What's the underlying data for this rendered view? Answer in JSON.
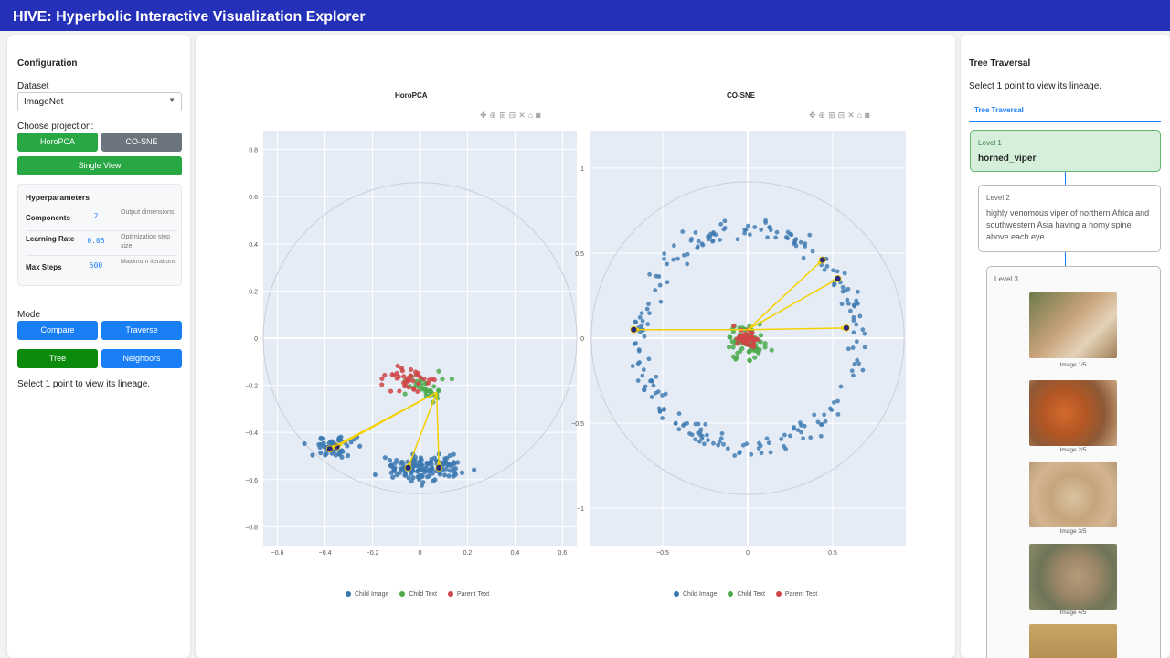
{
  "app": {
    "title": "HIVE: Hyperbolic Interactive Visualization Explorer"
  },
  "config": {
    "heading": "Configuration",
    "dataset_label": "Dataset",
    "dataset_value": "ImageNet",
    "projection_label": "Choose projection:",
    "btn_horopca": "HoroPCA",
    "btn_cosne": "CO-SNE",
    "btn_single": "Single View",
    "hyper": {
      "title": "Hyperparameters",
      "rows": [
        {
          "name": "Components",
          "value": "2",
          "desc": "Output dimensions"
        },
        {
          "name": "Learning Rate",
          "value": "0.05",
          "desc": "Optimization step size"
        },
        {
          "name": "Max Steps",
          "value": "500",
          "desc": "Maximum iterations"
        }
      ]
    },
    "mode_label": "Mode",
    "btn_compare": "Compare",
    "btn_traverse": "Traverse",
    "btn_tree": "Tree",
    "btn_neighbors": "Neighbors",
    "hint": "Select 1 point to view its lineage."
  },
  "toolbar_icons": [
    "pan-icon",
    "zoom-in-icon",
    "zoom-plus-icon",
    "zoom-minus-icon",
    "autoscale-icon",
    "home-icon",
    "camera-icon"
  ],
  "chart_data": [
    {
      "type": "scatter",
      "title": "HoroPCA",
      "xticks": [
        "−0.6",
        "−0.4",
        "−0.2",
        "0",
        "0.2",
        "0.4",
        "0.6"
      ],
      "yticks": [
        "0.8",
        "0.6",
        "0.4",
        "0.2",
        "0",
        "−0.2",
        "−0.4",
        "−0.6",
        "−0.8"
      ],
      "xlim": [
        -0.66,
        0.66
      ],
      "ylim": [
        -0.88,
        0.88
      ],
      "legend": [
        "Child Image",
        "Child Text",
        "Parent Text"
      ],
      "clusters": [
        {
          "series": "Child Image",
          "cx": -0.34,
          "cy": -0.46,
          "sx": 0.05,
          "sy": 0.02,
          "n": 55
        },
        {
          "series": "Child Image",
          "cx": 0.03,
          "cy": -0.55,
          "sx": 0.08,
          "sy": 0.025,
          "n": 140
        },
        {
          "series": "Child Text",
          "cx": 0.03,
          "cy": -0.2,
          "sx": 0.05,
          "sy": 0.025,
          "n": 35
        },
        {
          "series": "Parent Text",
          "cx": -0.05,
          "cy": -0.18,
          "sx": 0.06,
          "sy": 0.03,
          "n": 40
        }
      ],
      "arrows": [
        {
          "x1": 0.07,
          "y1": -0.23,
          "x2": -0.35,
          "y2": -0.46
        },
        {
          "x1": 0.07,
          "y1": -0.23,
          "x2": -0.38,
          "y2": -0.47
        },
        {
          "x1": 0.07,
          "y1": -0.23,
          "x2": -0.05,
          "y2": -0.55
        },
        {
          "x1": 0.07,
          "y1": -0.23,
          "x2": 0.08,
          "y2": -0.55
        }
      ]
    },
    {
      "type": "scatter",
      "title": "CO-SNE",
      "xticks": [
        "−0.5",
        "0",
        "0.5"
      ],
      "yticks": [
        "1",
        "0.5",
        "0",
        "−0.5",
        "−1"
      ],
      "xlim": [
        -0.93,
        0.93
      ],
      "ylim": [
        -1.22,
        1.22
      ],
      "legend": [
        "Child Image",
        "Child Text",
        "Parent Text"
      ],
      "ring": {
        "series": "Child Image",
        "r": 0.64,
        "n": 230
      },
      "clusters": [
        {
          "series": "Child Text",
          "cx": 0.0,
          "cy": -0.02,
          "sx": 0.06,
          "sy": 0.045,
          "n": 80
        },
        {
          "series": "Parent Text",
          "cx": 0.0,
          "cy": 0.0,
          "sx": 0.04,
          "sy": 0.03,
          "n": 45
        }
      ],
      "arrows": [
        {
          "x1": 0.0,
          "y1": 0.05,
          "x2": -0.67,
          "y2": 0.05
        },
        {
          "x1": 0.0,
          "y1": 0.05,
          "x2": 0.44,
          "y2": 0.46
        },
        {
          "x1": 0.0,
          "y1": 0.05,
          "x2": 0.53,
          "y2": 0.35
        },
        {
          "x1": 0.0,
          "y1": 0.05,
          "x2": 0.58,
          "y2": 0.06
        }
      ]
    }
  ],
  "colors": {
    "child_image": "#3b78b0",
    "child_text": "#4caa4c",
    "parent_text": "#d04545",
    "arrow": "#f5d000",
    "plot_bg": "#e5ecf6"
  },
  "tree": {
    "heading": "Tree Traversal",
    "hint": "Select 1 point to view its lineage.",
    "tab": "Tree Traversal",
    "level1": {
      "label": "Level 1",
      "name": "horned_viper"
    },
    "level2": {
      "label": "Level 2",
      "text": "highly venomous viper of northern Africa and southwestern Asia having a horny spine above each eye"
    },
    "level3": {
      "label": "Level 3",
      "captions": [
        "Image 1/5",
        "Image 2/5",
        "Image 3/5",
        "Image 4/5"
      ]
    }
  }
}
